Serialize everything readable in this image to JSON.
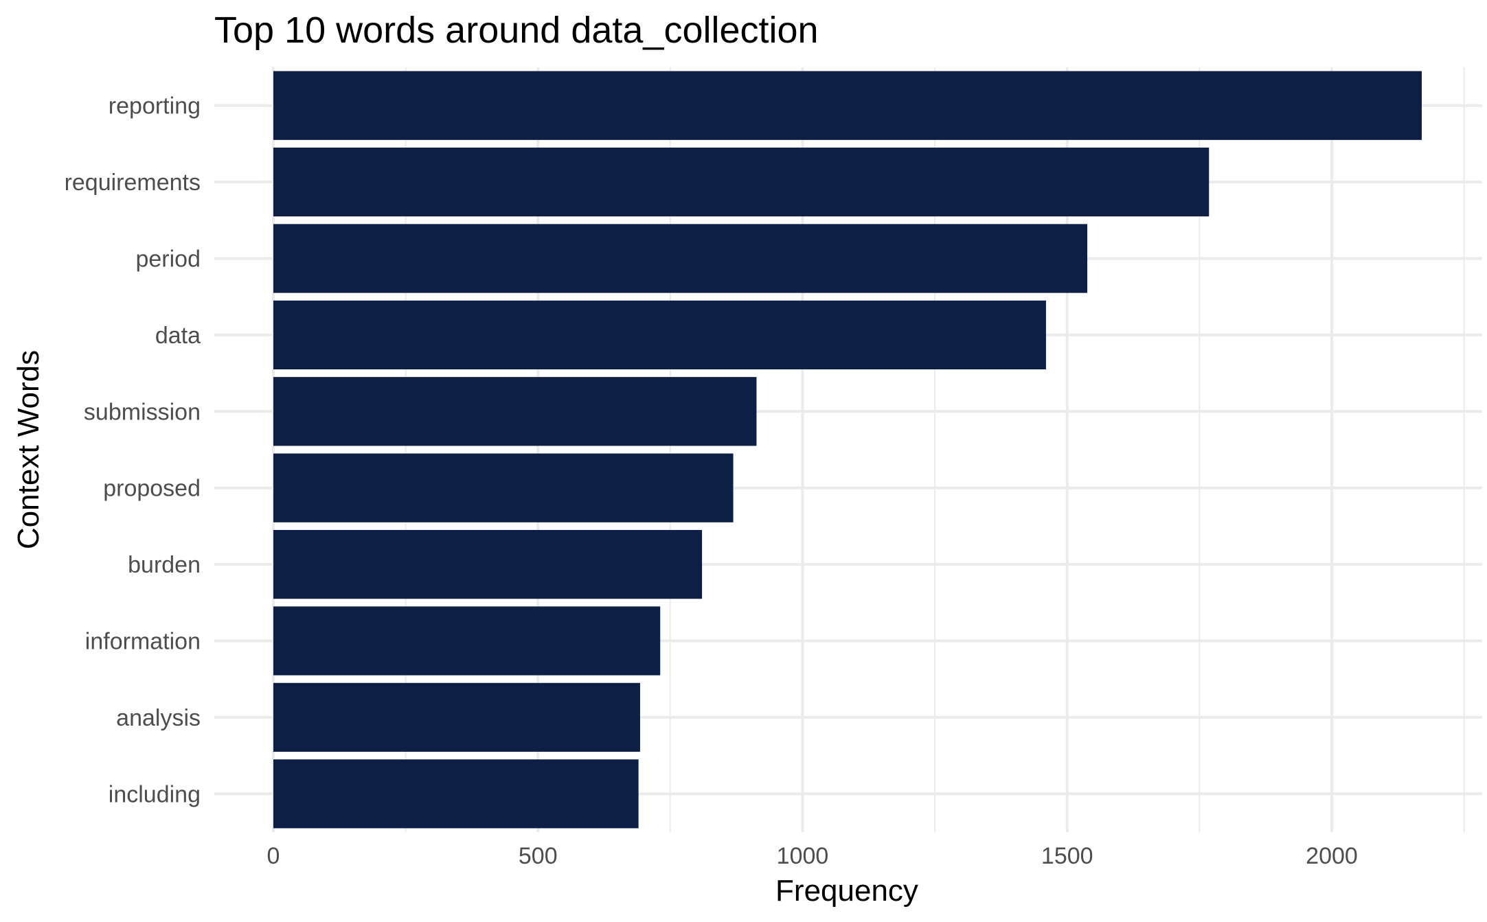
{
  "chart_data": {
    "type": "bar",
    "orientation": "horizontal",
    "title": "Top 10 words around data_collection",
    "xlabel": "Frequency",
    "ylabel": "Context Words",
    "categories": [
      "reporting",
      "requirements",
      "period",
      "data",
      "submission",
      "proposed",
      "burden",
      "information",
      "analysis",
      "including"
    ],
    "values": [
      2170,
      1768,
      1538,
      1460,
      913,
      869,
      810,
      731,
      693,
      690
    ],
    "xlim": [
      0,
      2250
    ],
    "xticks": [
      "0",
      "500",
      "1000",
      "1500",
      "2000"
    ],
    "grid": true,
    "legend": "none",
    "bar_color": "#0d1f44"
  }
}
